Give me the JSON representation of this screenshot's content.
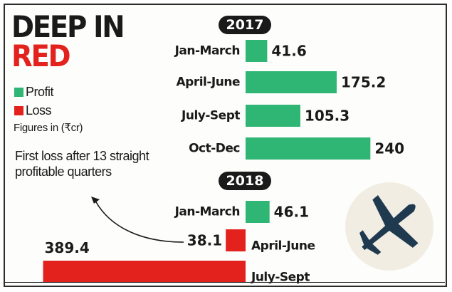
{
  "title": {
    "line1": "DEEP IN",
    "line2": "RED"
  },
  "legend": [
    {
      "label": "Profit",
      "color": "#2fb574"
    },
    {
      "label": "Loss",
      "color": "#e3221d"
    }
  ],
  "units_note": "Figures in (₹cr)",
  "annotation": "First loss after 13 straight profitable quarters",
  "icon": "airplane-icon",
  "chart_data": {
    "type": "bar",
    "orientation": "horizontal",
    "title": "DEEP IN RED",
    "units": "₹cr",
    "groups": [
      {
        "year": "2017",
        "bars": [
          {
            "category": "Jan-March",
            "value": 41.6,
            "label": "41.6",
            "kind": "profit"
          },
          {
            "category": "April-June",
            "value": 175.2,
            "label": "175.2",
            "kind": "profit"
          },
          {
            "category": "July-Sept",
            "value": 105.3,
            "label": "105.3",
            "kind": "profit"
          },
          {
            "category": "Oct-Dec",
            "value": 240,
            "label": "240",
            "kind": "profit"
          }
        ]
      },
      {
        "year": "2018",
        "bars": [
          {
            "category": "Jan-March",
            "value": 46.1,
            "label": "46.1",
            "kind": "profit"
          },
          {
            "category": "April-June",
            "value": -38.1,
            "label": "38.1",
            "kind": "loss"
          },
          {
            "category": "July-Sept",
            "value": -389.4,
            "label": "389.4",
            "kind": "loss"
          }
        ]
      }
    ],
    "colors": {
      "profit": "#2fb574",
      "loss": "#e3221d"
    }
  }
}
